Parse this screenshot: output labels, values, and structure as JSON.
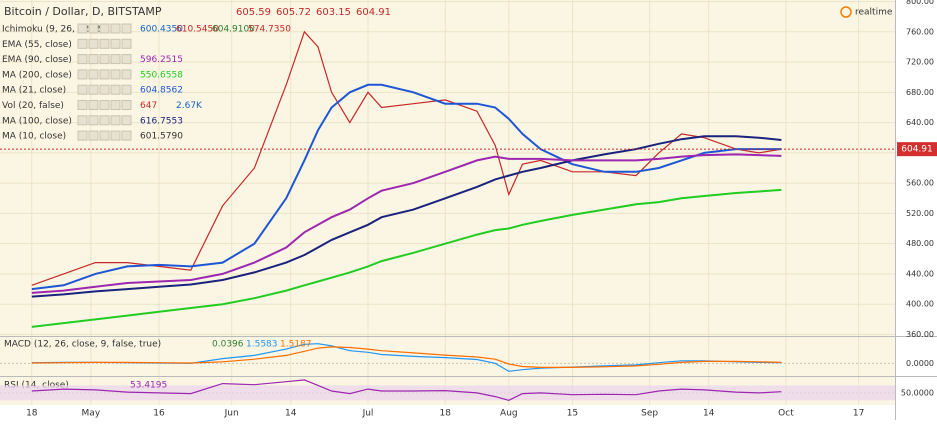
{
  "legend": {
    "title": "Bitcoin / Dollar, D, BITSTAMP",
    "ohlc": [
      "605.59",
      "605.72",
      "603.15",
      "604.91"
    ],
    "realtime": "realtime",
    "indicators": [
      {
        "name": "Ichimoku (9, 26, 52, 26)",
        "values": [
          "600.4350",
          "610.5450",
          "604.9100",
          "574.7350"
        ],
        "colors": [
          "#1565c0",
          "#c62828",
          "#2e7d32",
          "#c62828"
        ]
      },
      {
        "name": "EMA (55, close)",
        "values": [],
        "colors": []
      },
      {
        "name": "EMA (90, close)",
        "values": [
          "596.2515"
        ],
        "colors": [
          "#9c27b0"
        ]
      },
      {
        "name": "MA (200, close)",
        "values": [
          "550.6558"
        ],
        "colors": [
          "#22cc22"
        ]
      },
      {
        "name": "MA (21, close)",
        "values": [
          "604.8562"
        ],
        "colors": [
          "#1e56d6"
        ]
      },
      {
        "name": "Vol (20, false)",
        "values": [
          "647",
          "2.67K"
        ],
        "colors": [
          "#c62828",
          "#1565c0"
        ]
      },
      {
        "name": "MA (100, close)",
        "values": [
          "616.7553"
        ],
        "colors": [
          "#1a237e"
        ]
      },
      {
        "name": "MA (10, close)",
        "values": [
          "601.5790"
        ],
        "colors": [
          "#333333"
        ]
      }
    ],
    "macd_name": "MACD (12, 26, close, 9, false, true)",
    "macd_values": [
      "0.0396",
      "1.5583",
      "1.5187"
    ],
    "rsi_name": "RSI (14, close)",
    "rsi_values": [
      "53.4195"
    ]
  },
  "chart_data": [
    {
      "type": "line",
      "x": [
        0,
        7,
        14,
        21,
        28,
        35,
        42,
        49,
        56,
        60,
        63,
        66,
        70,
        74,
        77,
        84,
        91,
        98,
        102,
        105,
        108,
        112,
        119,
        126,
        133,
        138,
        143,
        148,
        155,
        160,
        165
      ],
      "xlim": [
        -7,
        190
      ],
      "xticks": [
        {
          "value": 0,
          "label": "18"
        },
        {
          "value": 13,
          "label": "May"
        },
        {
          "value": 28,
          "label": "16"
        },
        {
          "value": 44,
          "label": "Jun"
        },
        {
          "value": 57,
          "label": "14"
        },
        {
          "value": 74,
          "label": "Jul"
        },
        {
          "value": 91,
          "label": "18"
        },
        {
          "value": 105,
          "label": "Aug"
        },
        {
          "value": 119,
          "label": "15"
        },
        {
          "value": 136,
          "label": "Sep"
        },
        {
          "value": 149,
          "label": "14"
        },
        {
          "value": 166,
          "label": "Oct"
        },
        {
          "value": 182,
          "label": "17"
        }
      ],
      "ylim": [
        358,
        802
      ],
      "yticks": [
        {
          "value": 360,
          "label": "360.00"
        },
        {
          "value": 400,
          "label": "400.00"
        },
        {
          "value": 440,
          "label": "440.00"
        },
        {
          "value": 480,
          "label": "480.00"
        },
        {
          "value": 520,
          "label": "520.00"
        },
        {
          "value": 560,
          "label": "560.00"
        },
        {
          "value": 600,
          "label": "600.00"
        },
        {
          "value": 640,
          "label": "640.00"
        },
        {
          "value": 680,
          "label": "680.00"
        },
        {
          "value": 720,
          "label": "720.00"
        },
        {
          "value": 760,
          "label": "760.00"
        },
        {
          "value": 800,
          "label": "800.00"
        }
      ],
      "last_price": 604.91,
      "series": [
        {
          "name": "Close",
          "color": "#c62828",
          "values": [
            425,
            440,
            455,
            455,
            450,
            445,
            530,
            580,
            690,
            760,
            740,
            680,
            640,
            680,
            660,
            665,
            670,
            655,
            610,
            545,
            585,
            590,
            575,
            575,
            570,
            600,
            625,
            620,
            605,
            600,
            605
          ]
        },
        {
          "name": "MA (21)",
          "color": "#1e56d6",
          "values": [
            420,
            425,
            440,
            450,
            452,
            450,
            455,
            480,
            540,
            590,
            630,
            660,
            680,
            690,
            690,
            680,
            665,
            665,
            660,
            645,
            625,
            605,
            585,
            575,
            575,
            580,
            590,
            600,
            605,
            605,
            605
          ]
        },
        {
          "name": "MA (100)",
          "color": "#1a237e",
          "values": [
            410,
            413,
            417,
            420,
            423,
            426,
            432,
            442,
            455,
            465,
            475,
            485,
            495,
            505,
            515,
            525,
            540,
            555,
            565,
            570,
            575,
            580,
            590,
            598,
            605,
            612,
            618,
            622,
            622,
            620,
            617
          ]
        },
        {
          "name": "EMA (90)",
          "color": "#9c27b0",
          "values": [
            415,
            418,
            423,
            428,
            430,
            432,
            440,
            455,
            475,
            495,
            505,
            515,
            525,
            540,
            550,
            560,
            575,
            590,
            595,
            592,
            592,
            592,
            590,
            590,
            590,
            592,
            595,
            597,
            598,
            597,
            596
          ]
        },
        {
          "name": "MA (200)",
          "color": "#22cc22",
          "values": [
            370,
            375,
            380,
            385,
            390,
            395,
            400,
            408,
            418,
            425,
            430,
            435,
            442,
            450,
            457,
            468,
            480,
            492,
            498,
            500,
            505,
            510,
            518,
            525,
            532,
            535,
            540,
            543,
            547,
            549,
            551
          ]
        }
      ]
    },
    {
      "type": "line",
      "ylim": [
        -40,
        80
      ],
      "yticks": [
        {
          "value": 0,
          "label": "0.0000"
        }
      ],
      "series": [
        {
          "name": "MACD",
          "color": "#2196f3",
          "values": [
            2,
            3,
            3,
            2,
            1,
            0,
            15,
            25,
            45,
            60,
            62,
            55,
            40,
            35,
            28,
            22,
            18,
            12,
            0,
            -25,
            -20,
            -15,
            -12,
            -8,
            -5,
            2,
            8,
            8,
            5,
            3,
            2
          ]
        },
        {
          "name": "Signal",
          "color": "#ff6d00",
          "values": [
            1,
            2,
            3,
            3,
            2,
            1,
            5,
            13,
            25,
            38,
            48,
            52,
            50,
            45,
            40,
            33,
            26,
            20,
            13,
            -2,
            -10,
            -13,
            -13,
            -11,
            -8,
            -3,
            3,
            6,
            6,
            5,
            3
          ]
        }
      ]
    },
    {
      "type": "line",
      "ylim": [
        20,
        90
      ],
      "yticks": [
        {
          "value": 50,
          "label": "50.0000"
        }
      ],
      "band": [
        30,
        70
      ],
      "series": [
        {
          "name": "RSI",
          "color": "#9c27b0",
          "values": [
            55,
            60,
            58,
            52,
            50,
            48,
            75,
            72,
            80,
            85,
            70,
            55,
            48,
            60,
            55,
            55,
            56,
            50,
            40,
            30,
            48,
            50,
            45,
            46,
            45,
            55,
            60,
            58,
            52,
            50,
            53
          ]
        }
      ]
    }
  ]
}
